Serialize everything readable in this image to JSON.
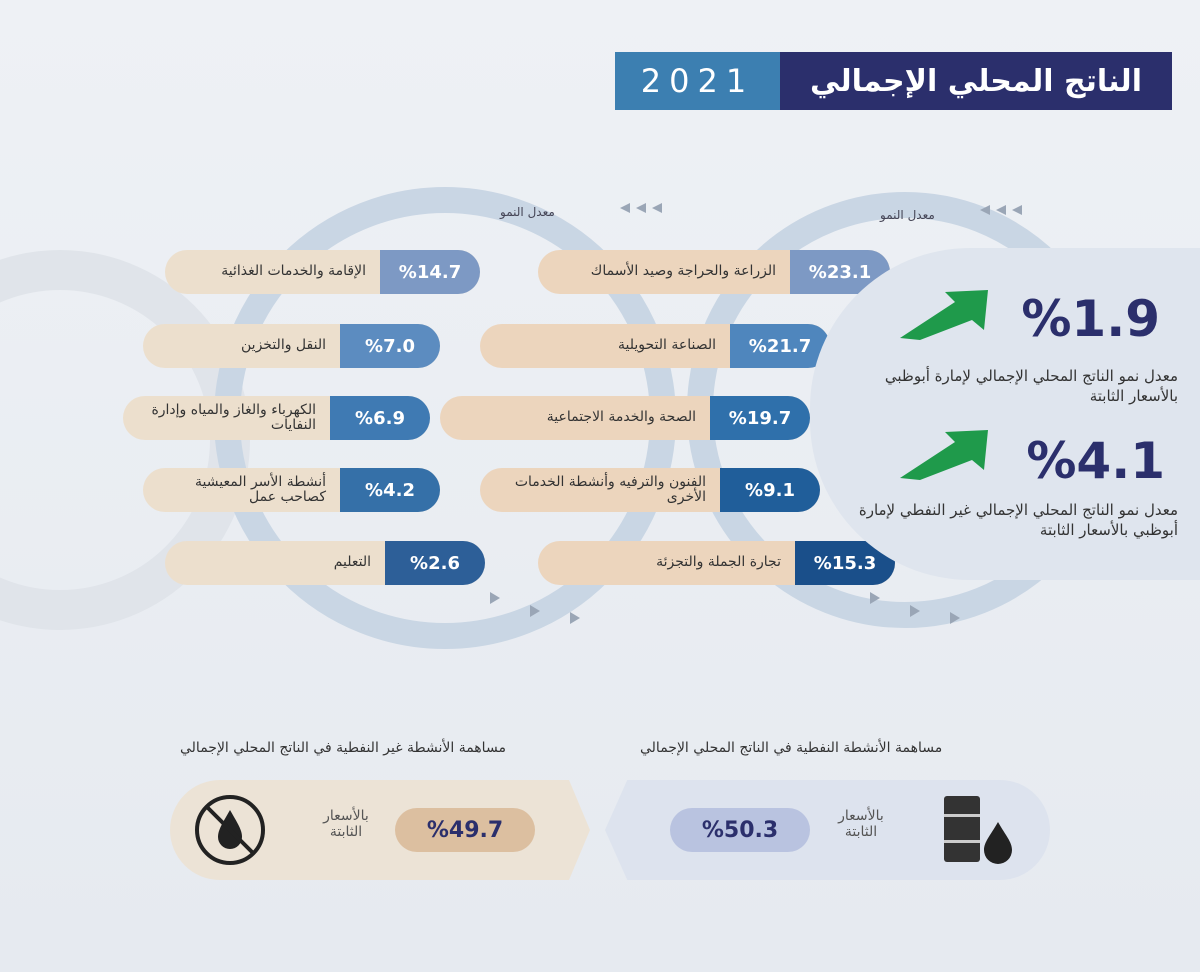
{
  "header": {
    "title": "الناتج المحلي الإجمالي",
    "year": "2021"
  },
  "growth_label": "معدل النمو",
  "left_column": [
    {
      "value": "%14.7",
      "label": "الإقامة والخدمات الغذائية"
    },
    {
      "value": "%7.0",
      "label": "النقل والتخزين"
    },
    {
      "value": "%6.9",
      "label": "الكهرباء والغاز والمياه وإدارة النفايات"
    },
    {
      "value": "%4.2",
      "label": "أنشطة الأسر المعيشية كصاحب عمل"
    },
    {
      "value": "%2.6",
      "label": "التعليم"
    }
  ],
  "right_column": [
    {
      "value": "%23.1",
      "label": "الزراعة والحراجة وصيد الأسماك"
    },
    {
      "value": "%21.7",
      "label": "الصناعة التحويلية"
    },
    {
      "value": "%19.7",
      "label": "الصحة والخدمة الاجتماعية"
    },
    {
      "value": "%9.1",
      "label": "الفنون والترفيه وأنشطة الخدمات الأخرى"
    },
    {
      "value": "%15.3",
      "label": "تجارة الجملة والتجزئة"
    }
  ],
  "summary": [
    {
      "value": "%1.9",
      "label": "معدل نمو الناتج المحلي الإجمالي لإمارة أبوظبي بالأسعار الثابتة",
      "icon": "arrow-up-right-icon"
    },
    {
      "value": "%4.1",
      "label": "معدل نمو الناتج المحلي الإجمالي غير النفطي لإمارة أبوظبي بالأسعار الثابتة",
      "icon": "arrow-up-right-icon"
    }
  ],
  "bottom": {
    "non_oil": {
      "caption": "مساهمة الأنشطة غير النفطية في الناتج المحلي الإجمالي",
      "price_label": "بالأسعار الثابتة",
      "value": "%49.7",
      "icon": "no-oil-drop-icon"
    },
    "oil": {
      "caption": "مساهمة الأنشطة النفطية في الناتج المحلي الإجمالي",
      "price_label": "بالأسعار الثابتة",
      "value": "%50.3",
      "icon": "oil-barrel-icon"
    }
  },
  "colors": {
    "navy": "#2b2f6c",
    "blue": "#3c7fb1",
    "beige": "#ecdfcd",
    "green": "#1f9a4b"
  }
}
